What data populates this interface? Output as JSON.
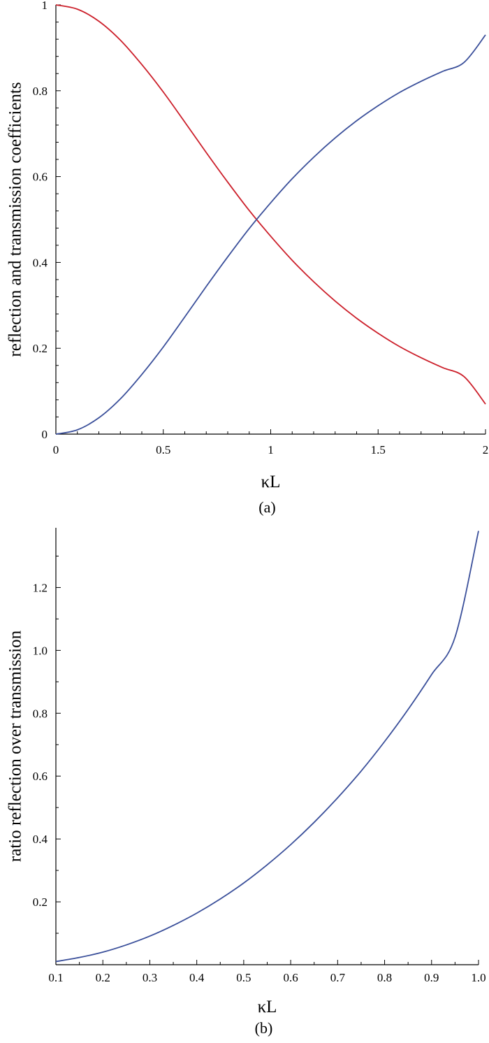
{
  "chart_data": [
    {
      "type": "line",
      "panel_label": "(a)",
      "xlabel": "κL",
      "ylabel": "reflection and transmission coefficients",
      "xlim": [
        0,
        2
      ],
      "ylim": [
        0,
        1
      ],
      "x_ticks": [
        0,
        0.5,
        1,
        1.5,
        2
      ],
      "x_tick_labels": [
        "0",
        "0.5",
        "1",
        "1.5",
        "2"
      ],
      "y_ticks": [
        0,
        0.2,
        0.4,
        0.6,
        0.8,
        1
      ],
      "y_tick_labels": [
        "0",
        "0.2",
        "0.4",
        "0.6",
        "0.8",
        "1"
      ],
      "grid": false,
      "legend": "none",
      "x": [
        0,
        0.1,
        0.2,
        0.3,
        0.4,
        0.5,
        0.6,
        0.7,
        0.8,
        0.9,
        1.0,
        1.1,
        1.2,
        1.3,
        1.4,
        1.5,
        1.6,
        1.7,
        1.8,
        1.9,
        2.0
      ],
      "series": [
        {
          "color": "#cc1f2a",
          "values": [
            1.0,
            0.99,
            0.962,
            0.918,
            0.861,
            0.797,
            0.727,
            0.656,
            0.587,
            0.521,
            0.461,
            0.405,
            0.355,
            0.31,
            0.27,
            0.235,
            0.204,
            0.178,
            0.155,
            0.134,
            0.07
          ]
        },
        {
          "color": "#3a4f9a",
          "values": [
            0.0,
            0.01,
            0.038,
            0.082,
            0.139,
            0.203,
            0.273,
            0.344,
            0.413,
            0.479,
            0.539,
            0.595,
            0.645,
            0.69,
            0.73,
            0.765,
            0.796,
            0.822,
            0.845,
            0.866,
            0.93
          ]
        }
      ]
    },
    {
      "type": "line",
      "panel_label": "(b)",
      "xlabel": "κL",
      "ylabel": "ratio reflection over transmission",
      "xlim": [
        0.1,
        1.0
      ],
      "ylim": [
        0.0,
        1.39
      ],
      "x_ticks": [
        0.1,
        0.2,
        0.3,
        0.4,
        0.5,
        0.6,
        0.7,
        0.8,
        0.9,
        1.0
      ],
      "x_tick_labels": [
        "0.1",
        "0.2",
        "0.3",
        "0.4",
        "0.5",
        "0.6",
        "0.7",
        "0.8",
        "0.9",
        "1.0"
      ],
      "y_ticks": [
        0.2,
        0.4,
        0.6,
        0.8,
        1.0,
        1.2
      ],
      "y_tick_labels": [
        "0.2",
        "0.4",
        "0.6",
        "0.8",
        "1.0",
        "1.2"
      ],
      "grid": false,
      "legend": "none",
      "x": [
        0.1,
        0.15,
        0.2,
        0.25,
        0.3,
        0.35,
        0.4,
        0.45,
        0.5,
        0.55,
        0.6,
        0.65,
        0.7,
        0.75,
        0.8,
        0.85,
        0.9,
        0.95,
        1.0
      ],
      "series": [
        {
          "color": "#3a4f9a",
          "values": [
            0.01,
            0.023,
            0.04,
            0.063,
            0.091,
            0.125,
            0.164,
            0.209,
            0.26,
            0.318,
            0.382,
            0.453,
            0.531,
            0.616,
            0.71,
            0.812,
            0.923,
            1.042,
            1.38
          ]
        }
      ]
    }
  ]
}
